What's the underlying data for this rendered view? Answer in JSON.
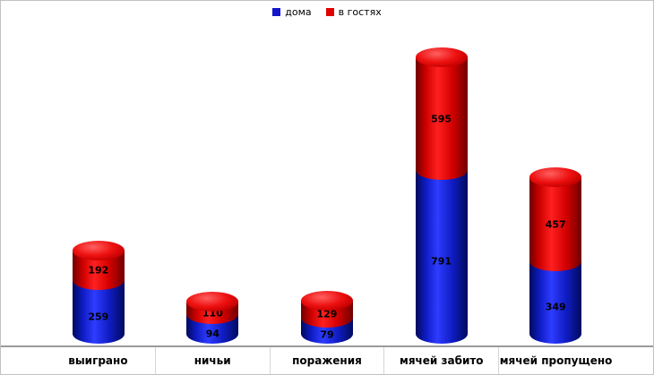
{
  "chart_data": {
    "type": "bar",
    "subtype": "stacked-cylinder-3d",
    "title": "",
    "xlabel": "",
    "ylabel": "",
    "grid": false,
    "legend_position": "top-center",
    "ylim": [
      0,
      1450
    ],
    "categories": [
      "выиграно",
      "ничьи",
      "поражения",
      "мячей забито",
      "мячей пропущено"
    ],
    "series": [
      {
        "name": "дома",
        "color": "#1414cc",
        "values": [
          259,
          94,
          79,
          791,
          349
        ]
      },
      {
        "name": "в гостях",
        "color": "#e00000",
        "values": [
          192,
          110,
          129,
          595,
          457
        ]
      }
    ]
  },
  "colors": {
    "home_blue": "#1414cc",
    "away_red": "#e00000",
    "baseline": "#9b9b9b",
    "label_text": "#000000",
    "background": "#ffffff"
  }
}
